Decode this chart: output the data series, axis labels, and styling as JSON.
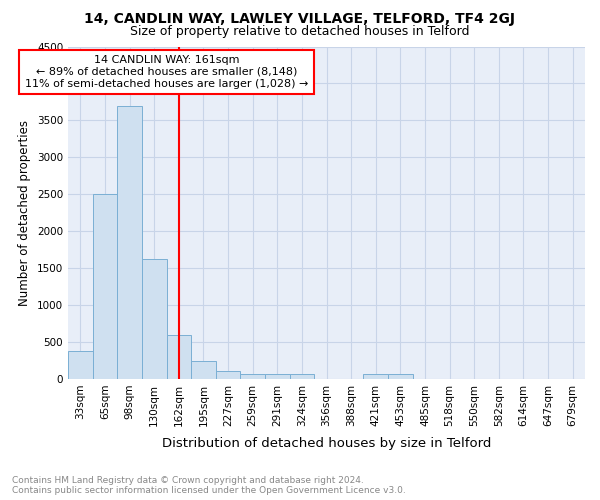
{
  "title1": "14, CANDLIN WAY, LAWLEY VILLAGE, TELFORD, TF4 2GJ",
  "title2": "Size of property relative to detached houses in Telford",
  "xlabel": "Distribution of detached houses by size in Telford",
  "ylabel": "Number of detached properties",
  "categories": [
    "33sqm",
    "65sqm",
    "98sqm",
    "130sqm",
    "162sqm",
    "195sqm",
    "227sqm",
    "259sqm",
    "291sqm",
    "324sqm",
    "356sqm",
    "388sqm",
    "421sqm",
    "453sqm",
    "485sqm",
    "518sqm",
    "550sqm",
    "582sqm",
    "614sqm",
    "647sqm",
    "679sqm"
  ],
  "values": [
    375,
    2500,
    3700,
    1625,
    600,
    240,
    110,
    60,
    60,
    60,
    0,
    0,
    60,
    60,
    0,
    0,
    0,
    0,
    0,
    0,
    0
  ],
  "bar_color": "#cfe0f0",
  "bar_edge_color": "#7aafd4",
  "grid_color": "#c8d4e8",
  "background_color": "#e8eef8",
  "red_line_index": 4,
  "annotation_text": "14 CANDLIN WAY: 161sqm\n← 89% of detached houses are smaller (8,148)\n11% of semi-detached houses are larger (1,028) →",
  "annotation_box_color": "white",
  "annotation_box_edge": "red",
  "ylim": [
    0,
    4500
  ],
  "yticks": [
    0,
    500,
    1000,
    1500,
    2000,
    2500,
    3000,
    3500,
    4000,
    4500
  ],
  "footnote": "Contains HM Land Registry data © Crown copyright and database right 2024.\nContains public sector information licensed under the Open Government Licence v3.0.",
  "title1_fontsize": 10,
  "title2_fontsize": 9,
  "xlabel_fontsize": 9.5,
  "ylabel_fontsize": 8.5,
  "tick_fontsize": 7.5,
  "annotation_fontsize": 8,
  "footnote_fontsize": 6.5,
  "footnote_color": "#888888"
}
